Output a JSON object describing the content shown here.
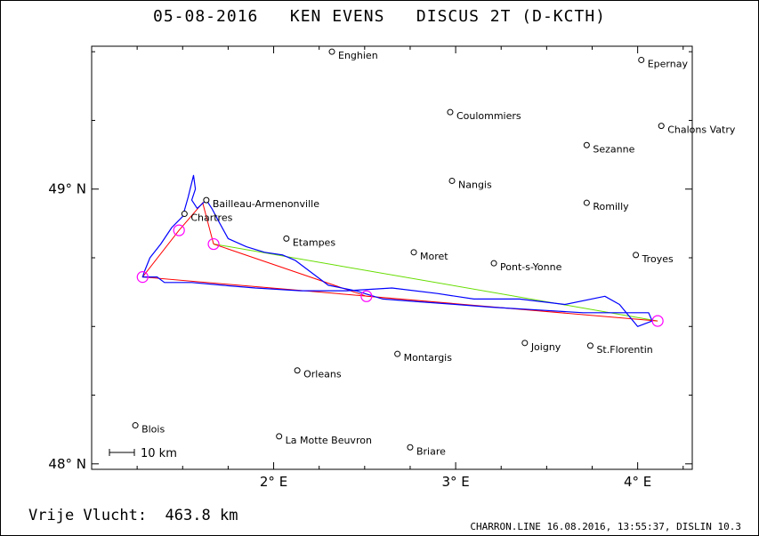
{
  "title": "05-08-2016   KEN EVENS   DISCUS 2T (D-KCTH)",
  "footer": {
    "distance_label": "Vrije Vlucht:",
    "distance_value": "463.8 km",
    "credit": "CHARRON.LINE 16.08.2016, 13:55:37, DISLIN 10.3"
  },
  "map": {
    "lon_range": [
      1.0,
      4.3
    ],
    "lat_range": [
      47.98,
      49.52
    ],
    "x_ticks": [
      {
        "value": 2,
        "label": "2° E"
      },
      {
        "value": 3,
        "label": "3° E"
      },
      {
        "value": 4,
        "label": "4° E"
      }
    ],
    "y_ticks": [
      {
        "value": 49,
        "label": "49° N"
      },
      {
        "value": 48,
        "label": "48° N"
      }
    ],
    "scale_bar_label": "10 km",
    "colors": {
      "track": "#0000ff",
      "task_leg": "#ff0000",
      "alt_leg": "#66dd00",
      "turnpoint": "#ff00ff",
      "accent": "#00c8c8"
    },
    "places": [
      {
        "name": "Enghien",
        "lon": 2.32,
        "lat": 49.5
      },
      {
        "name": "Epernay",
        "lon": 4.02,
        "lat": 49.47
      },
      {
        "name": "Coulommiers",
        "lon": 2.97,
        "lat": 49.28
      },
      {
        "name": "Chalons Vatry",
        "lon": 4.13,
        "lat": 49.23
      },
      {
        "name": "Sezanne",
        "lon": 3.72,
        "lat": 49.16
      },
      {
        "name": "Bailleau-Armenonville",
        "lon": 1.63,
        "lat": 48.96
      },
      {
        "name": "Nangis",
        "lon": 2.98,
        "lat": 49.03
      },
      {
        "name": "Chartres",
        "lon": 1.51,
        "lat": 48.91
      },
      {
        "name": "Romilly",
        "lon": 3.72,
        "lat": 48.95
      },
      {
        "name": "Etampes",
        "lon": 2.07,
        "lat": 48.82
      },
      {
        "name": "Moret",
        "lon": 2.77,
        "lat": 48.77
      },
      {
        "name": "Troyes",
        "lon": 3.99,
        "lat": 48.76
      },
      {
        "name": "Pont-s-Yonne",
        "lon": 3.21,
        "lat": 48.73
      },
      {
        "name": "Joigny",
        "lon": 3.38,
        "lat": 48.44
      },
      {
        "name": "St.Florentin",
        "lon": 3.74,
        "lat": 48.43
      },
      {
        "name": "Montargis",
        "lon": 2.68,
        "lat": 48.4
      },
      {
        "name": "Orleans",
        "lon": 2.13,
        "lat": 48.34
      },
      {
        "name": "Blois",
        "lon": 1.24,
        "lat": 48.14
      },
      {
        "name": "La Motte Beuvron",
        "lon": 2.03,
        "lat": 48.1
      },
      {
        "name": "Briare",
        "lon": 2.75,
        "lat": 48.06
      }
    ],
    "turnpoints": [
      {
        "lon": 1.67,
        "lat": 48.8
      },
      {
        "lon": 1.48,
        "lat": 48.85
      },
      {
        "lon": 1.28,
        "lat": 48.68
      },
      {
        "lon": 4.11,
        "lat": 48.52
      },
      {
        "lon": 2.51,
        "lat": 48.61
      }
    ],
    "task_route": [
      [
        1.67,
        48.8
      ],
      [
        1.61,
        48.95
      ],
      [
        1.48,
        48.85
      ],
      [
        1.28,
        48.68
      ],
      [
        4.11,
        48.52
      ],
      [
        2.51,
        48.61
      ],
      [
        1.67,
        48.8
      ]
    ],
    "alt_route": [
      [
        1.67,
        48.8
      ],
      [
        4.11,
        48.52
      ]
    ],
    "track": [
      [
        1.63,
        48.96
      ],
      [
        1.58,
        48.93
      ],
      [
        1.55,
        48.96
      ],
      [
        1.57,
        49.0
      ],
      [
        1.56,
        49.05
      ],
      [
        1.53,
        48.97
      ],
      [
        1.5,
        48.9
      ],
      [
        1.44,
        48.86
      ],
      [
        1.38,
        48.8
      ],
      [
        1.32,
        48.75
      ],
      [
        1.29,
        48.7
      ],
      [
        1.28,
        48.68
      ],
      [
        1.36,
        48.68
      ],
      [
        1.4,
        48.66
      ],
      [
        1.55,
        48.66
      ],
      [
        1.72,
        48.65
      ],
      [
        1.9,
        48.64
      ],
      [
        2.15,
        48.63
      ],
      [
        2.4,
        48.63
      ],
      [
        2.65,
        48.64
      ],
      [
        2.9,
        48.62
      ],
      [
        3.1,
        48.6
      ],
      [
        3.35,
        48.6
      ],
      [
        3.6,
        48.58
      ],
      [
        3.82,
        48.61
      ],
      [
        3.9,
        48.58
      ],
      [
        4.0,
        48.5
      ],
      [
        4.08,
        48.52
      ],
      [
        4.06,
        48.55
      ],
      [
        3.9,
        48.55
      ],
      [
        3.7,
        48.55
      ],
      [
        3.45,
        48.56
      ],
      [
        3.2,
        48.57
      ],
      [
        3.0,
        48.58
      ],
      [
        2.8,
        48.59
      ],
      [
        2.6,
        48.6
      ],
      [
        2.45,
        48.63
      ],
      [
        2.3,
        48.65
      ],
      [
        2.2,
        48.7
      ],
      [
        2.12,
        48.74
      ],
      [
        2.05,
        48.76
      ],
      [
        1.95,
        48.77
      ],
      [
        1.85,
        48.79
      ],
      [
        1.75,
        48.82
      ],
      [
        1.7,
        48.88
      ],
      [
        1.66,
        48.93
      ],
      [
        1.63,
        48.96
      ]
    ]
  }
}
